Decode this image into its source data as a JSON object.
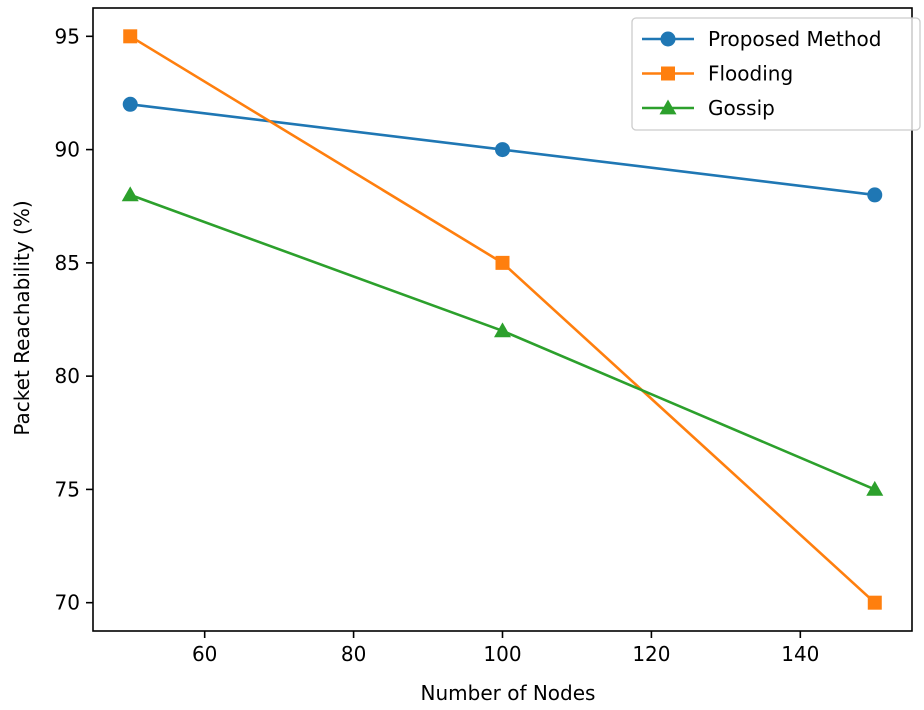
{
  "chart_data": {
    "type": "line",
    "title": "",
    "xlabel": "Number of Nodes",
    "ylabel": "Packet Reachability (%)",
    "x": [
      50,
      100,
      150
    ],
    "xlim": [
      45.0,
      155.0
    ],
    "ylim": [
      68.75,
      96.25
    ],
    "xticks": [
      60,
      80,
      100,
      120,
      140
    ],
    "yticks": [
      70,
      75,
      80,
      85,
      90,
      95
    ],
    "grid": false,
    "legend_position": "upper right",
    "series": [
      {
        "name": "Proposed Method",
        "values": [
          92,
          90,
          88
        ],
        "color": "#1f77b4",
        "marker": "circle"
      },
      {
        "name": "Flooding",
        "values": [
          95,
          85,
          70
        ],
        "color": "#ff7f0e",
        "marker": "square"
      },
      {
        "name": "Gossip",
        "values": [
          88,
          82,
          75
        ],
        "color": "#2ca02c",
        "marker": "triangle"
      }
    ]
  }
}
